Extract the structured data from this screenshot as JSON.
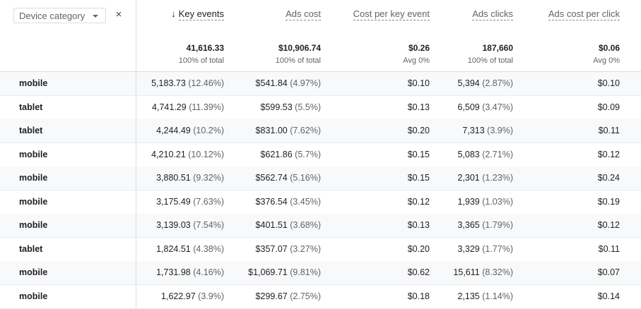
{
  "dimension": {
    "label": "Device category",
    "close": "×"
  },
  "columns": [
    {
      "key": "key_events",
      "label": "Key events",
      "sorted": true,
      "total": "41,616.33",
      "sub": "100% of total"
    },
    {
      "key": "ads_cost",
      "label": "Ads cost",
      "total": "$10,906.74",
      "sub": "100% of total"
    },
    {
      "key": "cost_per_key_event",
      "label": "Cost per key event",
      "total": "$0.26",
      "sub": "Avg 0%"
    },
    {
      "key": "ads_clicks",
      "label": "Ads clicks",
      "total": "187,660",
      "sub": "100% of total"
    },
    {
      "key": "ads_cost_per_click",
      "label": "Ads cost per click",
      "total": "$0.06",
      "sub": "Avg 0%"
    }
  ],
  "sort_arrow": "↓",
  "rows": [
    {
      "dim": "mobile",
      "ke": "5,183.73",
      "ke_pct": "(12.46%)",
      "cost": "$541.84",
      "cost_pct": "(4.97%)",
      "cpke": "$0.10",
      "clicks": "5,394",
      "clicks_pct": "(2.87%)",
      "cpc": "$0.10"
    },
    {
      "dim": "tablet",
      "ke": "4,741.29",
      "ke_pct": "(11.39%)",
      "cost": "$599.53",
      "cost_pct": "(5.5%)",
      "cpke": "$0.13",
      "clicks": "6,509",
      "clicks_pct": "(3.47%)",
      "cpc": "$0.09"
    },
    {
      "dim": "tablet",
      "ke": "4,244.49",
      "ke_pct": "(10.2%)",
      "cost": "$831.00",
      "cost_pct": "(7.62%)",
      "cpke": "$0.20",
      "clicks": "7,313",
      "clicks_pct": "(3.9%)",
      "cpc": "$0.11"
    },
    {
      "dim": "mobile",
      "ke": "4,210.21",
      "ke_pct": "(10.12%)",
      "cost": "$621.86",
      "cost_pct": "(5.7%)",
      "cpke": "$0.15",
      "clicks": "5,083",
      "clicks_pct": "(2.71%)",
      "cpc": "$0.12"
    },
    {
      "dim": "mobile",
      "ke": "3,880.51",
      "ke_pct": "(9.32%)",
      "cost": "$562.74",
      "cost_pct": "(5.16%)",
      "cpke": "$0.15",
      "clicks": "2,301",
      "clicks_pct": "(1.23%)",
      "cpc": "$0.24"
    },
    {
      "dim": "mobile",
      "ke": "3,175.49",
      "ke_pct": "(7.63%)",
      "cost": "$376.54",
      "cost_pct": "(3.45%)",
      "cpke": "$0.12",
      "clicks": "1,939",
      "clicks_pct": "(1.03%)",
      "cpc": "$0.19"
    },
    {
      "dim": "mobile",
      "ke": "3,139.03",
      "ke_pct": "(7.54%)",
      "cost": "$401.51",
      "cost_pct": "(3.68%)",
      "cpke": "$0.13",
      "clicks": "3,365",
      "clicks_pct": "(1.79%)",
      "cpc": "$0.12"
    },
    {
      "dim": "tablet",
      "ke": "1,824.51",
      "ke_pct": "(4.38%)",
      "cost": "$357.07",
      "cost_pct": "(3.27%)",
      "cpke": "$0.20",
      "clicks": "3,329",
      "clicks_pct": "(1.77%)",
      "cpc": "$0.11"
    },
    {
      "dim": "mobile",
      "ke": "1,731.98",
      "ke_pct": "(4.16%)",
      "cost": "$1,069.71",
      "cost_pct": "(9.81%)",
      "cpke": "$0.62",
      "clicks": "15,611",
      "clicks_pct": "(8.32%)",
      "cpc": "$0.07"
    },
    {
      "dim": "mobile",
      "ke": "1,622.97",
      "ke_pct": "(3.9%)",
      "cost": "$299.67",
      "cost_pct": "(2.75%)",
      "cpke": "$0.18",
      "clicks": "2,135",
      "clicks_pct": "(1.14%)",
      "cpc": "$0.14"
    }
  ]
}
